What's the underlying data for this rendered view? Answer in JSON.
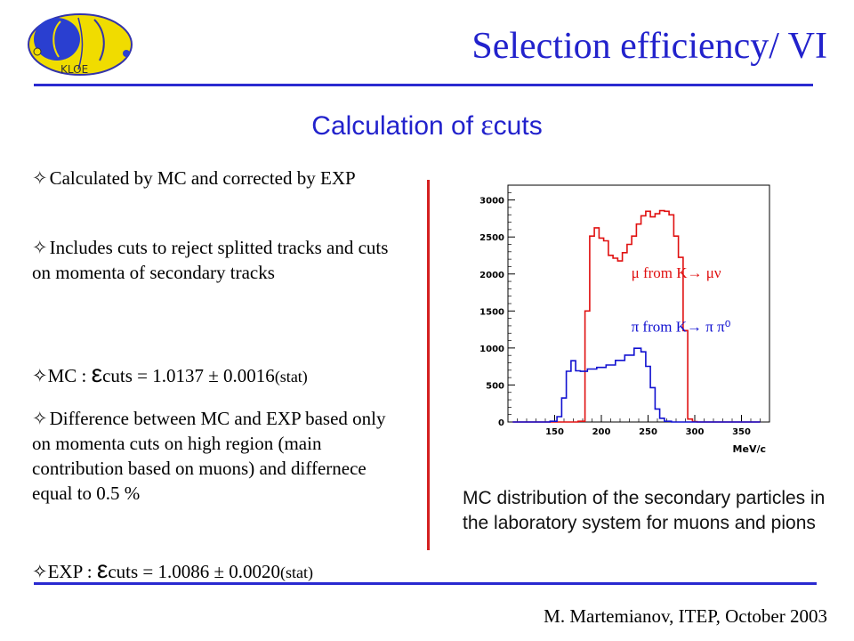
{
  "header": {
    "title": "Selection efficiency/ VI",
    "logo_text": "KLOE"
  },
  "subtitle": {
    "prefix": "Calculation of ",
    "epsilon": "ε",
    "suffix": "cuts"
  },
  "bullets": [
    "Calculated by MC and corrected by EXP",
    "Includes cuts to reject splitted tracks and cuts on momenta of secondary tracks",
    "Difference between MC and EXP based only on momenta cuts on high region (main contribution based on muons) and differnece equal to 0.5 %"
  ],
  "bullet_symbol": "✧",
  "mc": {
    "label": "MC : ",
    "epsilon": "ε",
    "text": "cuts = 1.0137 ± 0.0016",
    "stat": "(stat)"
  },
  "exp": {
    "label": "EXP : ",
    "epsilon": "ε",
    "text": "cuts = 1.0086 ± 0.0020",
    "stat": "(stat)"
  },
  "caption": "MC distribution of the secondary particles in the laboratory system for muons and pions",
  "footer": "M. Martemianov, ITEP, October 2003",
  "colors": {
    "title": "#2222cc",
    "rule": "#2a2ad0",
    "divider": "#d42020",
    "muon": "#e01010",
    "pion": "#1010d0"
  },
  "chart_data": {
    "type": "line",
    "xlabel": "MeV/c",
    "ylabel": "",
    "xlim": [
      100,
      380
    ],
    "ylim": [
      0,
      3200
    ],
    "x_ticks": [
      "150",
      "200",
      "250",
      "300",
      "350"
    ],
    "y_ticks": [
      "0",
      "500",
      "1000",
      "1500",
      "2000",
      "2500",
      "3000"
    ],
    "annotations": [
      "μ from K→ μν",
      "π from K→ π π⁰"
    ],
    "series": [
      {
        "name": "μ from K→ μν",
        "color": "#e01010",
        "x": [
          105,
          140,
          170,
          180,
          185,
          190,
          195,
          200,
          205,
          210,
          215,
          220,
          225,
          230,
          235,
          240,
          245,
          250,
          255,
          260,
          265,
          270,
          275,
          280,
          285,
          290,
          295,
          300,
          305,
          310,
          320,
          340,
          370
        ],
        "y": [
          0,
          0,
          0,
          10,
          1500,
          2500,
          2600,
          2450,
          2400,
          2300,
          2250,
          2200,
          2300,
          2400,
          2500,
          2650,
          2750,
          2800,
          2820,
          2850,
          2880,
          2860,
          2800,
          2500,
          2200,
          1200,
          40,
          5,
          0,
          0,
          0,
          0,
          0
        ]
      },
      {
        "name": "π from K→ π π⁰",
        "color": "#1010d0",
        "x": [
          105,
          140,
          150,
          155,
          160,
          165,
          170,
          175,
          180,
          190,
          200,
          210,
          220,
          230,
          240,
          245,
          250,
          255,
          260,
          265,
          270,
          280,
          300,
          370
        ],
        "y": [
          0,
          0,
          10,
          60,
          300,
          650,
          780,
          740,
          720,
          740,
          750,
          770,
          820,
          880,
          960,
          900,
          800,
          500,
          200,
          50,
          10,
          0,
          0,
          0
        ]
      }
    ]
  }
}
